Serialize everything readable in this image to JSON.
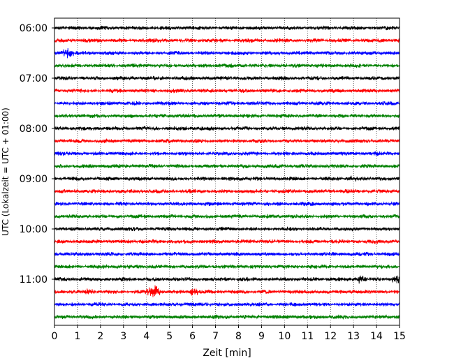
{
  "chart_data": {
    "type": "line",
    "title": "",
    "xlabel": "Zeit  [min]",
    "ylabel": "UTC (Lokalzeit = UTC + 01:00)",
    "xlim": [
      0,
      15
    ],
    "x_ticks": [
      "0",
      "1",
      "2",
      "3",
      "4",
      "5",
      "6",
      "7",
      "8",
      "9",
      "10",
      "11",
      "12",
      "13",
      "14",
      "15"
    ],
    "y_tick_labels": [
      "06:00",
      "07:00",
      "08:00",
      "09:00",
      "10:00",
      "11:00"
    ],
    "grid": "vertical-dotted",
    "trace_colors": [
      "#000000",
      "#ff0000",
      "#0000ff",
      "#008000"
    ],
    "traces": [
      {
        "start": "06:00",
        "color": "#000000"
      },
      {
        "start": "06:15",
        "color": "#ff0000"
      },
      {
        "start": "06:30",
        "color": "#0000ff",
        "events": [
          [
            0.55,
            12
          ]
        ]
      },
      {
        "start": "06:45",
        "color": "#008000"
      },
      {
        "start": "07:00",
        "color": "#000000"
      },
      {
        "start": "07:15",
        "color": "#ff0000",
        "events": [
          [
            5.1,
            5
          ]
        ]
      },
      {
        "start": "07:30",
        "color": "#0000ff"
      },
      {
        "start": "07:45",
        "color": "#008000"
      },
      {
        "start": "08:00",
        "color": "#000000"
      },
      {
        "start": "08:15",
        "color": "#ff0000"
      },
      {
        "start": "08:30",
        "color": "#0000ff"
      },
      {
        "start": "08:45",
        "color": "#008000"
      },
      {
        "start": "09:00",
        "color": "#000000",
        "events": [
          [
            13.0,
            6
          ]
        ]
      },
      {
        "start": "09:15",
        "color": "#ff0000"
      },
      {
        "start": "09:30",
        "color": "#0000ff"
      },
      {
        "start": "09:45",
        "color": "#008000"
      },
      {
        "start": "10:00",
        "color": "#000000"
      },
      {
        "start": "10:15",
        "color": "#ff0000"
      },
      {
        "start": "10:30",
        "color": "#0000ff"
      },
      {
        "start": "10:45",
        "color": "#008000"
      },
      {
        "start": "11:00",
        "color": "#000000",
        "events": [
          [
            13.3,
            8
          ],
          [
            14.9,
            9
          ]
        ]
      },
      {
        "start": "11:15",
        "color": "#ff0000",
        "events": [
          [
            1.5,
            7
          ],
          [
            4.3,
            14
          ],
          [
            6.0,
            10
          ]
        ]
      },
      {
        "start": "11:30",
        "color": "#0000ff"
      },
      {
        "start": "11:45",
        "color": "#008000"
      }
    ]
  }
}
